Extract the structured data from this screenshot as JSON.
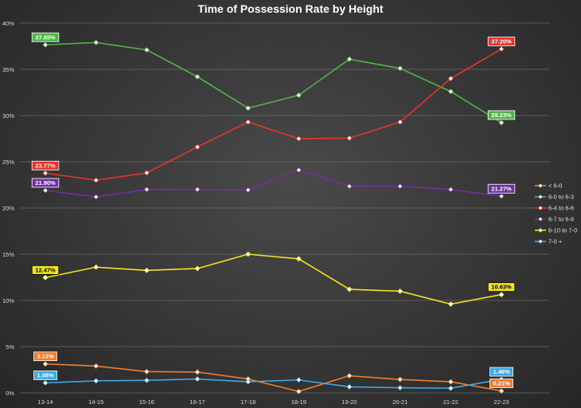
{
  "chart_data": {
    "type": "line",
    "title": "Time of Possession Rate by Height",
    "xlabel": "",
    "ylabel": "",
    "categories": [
      "13-14",
      "14-15",
      "15-16",
      "16-17",
      "17-18",
      "18-19",
      "19-20",
      "20-21",
      "21-22",
      "22-23"
    ],
    "ylim": [
      0,
      40
    ],
    "yticks": [
      0,
      5,
      10,
      15,
      20,
      25,
      30,
      35,
      40
    ],
    "ytick_labels": [
      "0%",
      "5%",
      "10%",
      "15%",
      "20%",
      "25%",
      "30%",
      "35%",
      "40%"
    ],
    "grid": true,
    "legend_position": "right",
    "series": [
      {
        "name": "< 6-0",
        "color": "#ed7d31",
        "values": [
          3.13,
          2.9,
          2.3,
          2.25,
          1.5,
          0.15,
          1.85,
          1.45,
          1.2,
          0.21
        ]
      },
      {
        "name": "6-0 to 6-3",
        "color": "#4fb548",
        "values": [
          37.65,
          37.9,
          37.1,
          34.2,
          30.8,
          32.2,
          36.1,
          35.1,
          32.6,
          29.23
        ]
      },
      {
        "name": "6-4 to 6-6",
        "color": "#e8352b",
        "values": [
          23.77,
          23.0,
          23.8,
          26.6,
          29.3,
          27.5,
          27.55,
          29.3,
          34.0,
          37.2
        ]
      },
      {
        "name": "6-7 to 6-9",
        "color": "#7030a0",
        "values": [
          21.9,
          21.2,
          22.0,
          22.0,
          21.95,
          24.1,
          22.35,
          22.35,
          22.0,
          21.27
        ]
      },
      {
        "name": "6-10 to 7-0",
        "color": "#f0e51c",
        "values": [
          12.47,
          13.6,
          13.25,
          13.45,
          15.0,
          14.5,
          11.2,
          11.0,
          9.6,
          10.63
        ]
      },
      {
        "name": "7-0 +",
        "color": "#3ea8e6",
        "values": [
          1.08,
          1.3,
          1.35,
          1.5,
          1.2,
          1.4,
          0.65,
          0.55,
          0.5,
          1.46
        ]
      }
    ],
    "marker_color": "#ffffff",
    "data_labels": [
      {
        "series": "6-0 to 6-3",
        "point": "first",
        "text": "37.65%",
        "bg": "#4fb548",
        "fg": "#ffffff",
        "border": "#ffffff"
      },
      {
        "series": "6-0 to 6-3",
        "point": "last",
        "text": "29.23%",
        "bg": "#4fb548",
        "fg": "#ffffff",
        "border": "#ffffff"
      },
      {
        "series": "6-4 to 6-6",
        "point": "first",
        "text": "23.77%",
        "bg": "#e8352b",
        "fg": "#ffffff",
        "border": "#ffffff"
      },
      {
        "series": "6-4 to 6-6",
        "point": "last",
        "text": "37.20%",
        "bg": "#e8352b",
        "fg": "#ffffff",
        "border": "#ffffff"
      },
      {
        "series": "6-7 to 6-9",
        "point": "first",
        "text": "21.90%",
        "bg": "#7030a0",
        "fg": "#ffffff",
        "border": "#ffffff"
      },
      {
        "series": "6-7 to 6-9",
        "point": "last",
        "text": "21.27%",
        "bg": "#7030a0",
        "fg": "#ffffff",
        "border": "#ffffff"
      },
      {
        "series": "6-10 to 7-0",
        "point": "first",
        "text": "12.47%",
        "bg": "#f0e51c",
        "fg": "#000000",
        "border": "#000000"
      },
      {
        "series": "6-10 to 7-0",
        "point": "last",
        "text": "10.63%",
        "bg": "#f0e51c",
        "fg": "#000000",
        "border": "#000000"
      },
      {
        "series": "< 6-0",
        "point": "first",
        "text": "3.13%",
        "bg": "#ed7d31",
        "fg": "#ffffff",
        "border": "#ffffff"
      },
      {
        "series": "< 6-0",
        "point": "last",
        "text": "0.21%",
        "bg": "#ed7d31",
        "fg": "#ffffff",
        "border": "#ffffff"
      },
      {
        "series": "7-0 +",
        "point": "first",
        "text": "1.08%",
        "bg": "#3ea8e6",
        "fg": "#ffffff",
        "border": "#ffffff"
      },
      {
        "series": "7-0 +",
        "point": "last",
        "text": "1.46%",
        "bg": "#3ea8e6",
        "fg": "#ffffff",
        "border": "#ffffff"
      }
    ]
  }
}
